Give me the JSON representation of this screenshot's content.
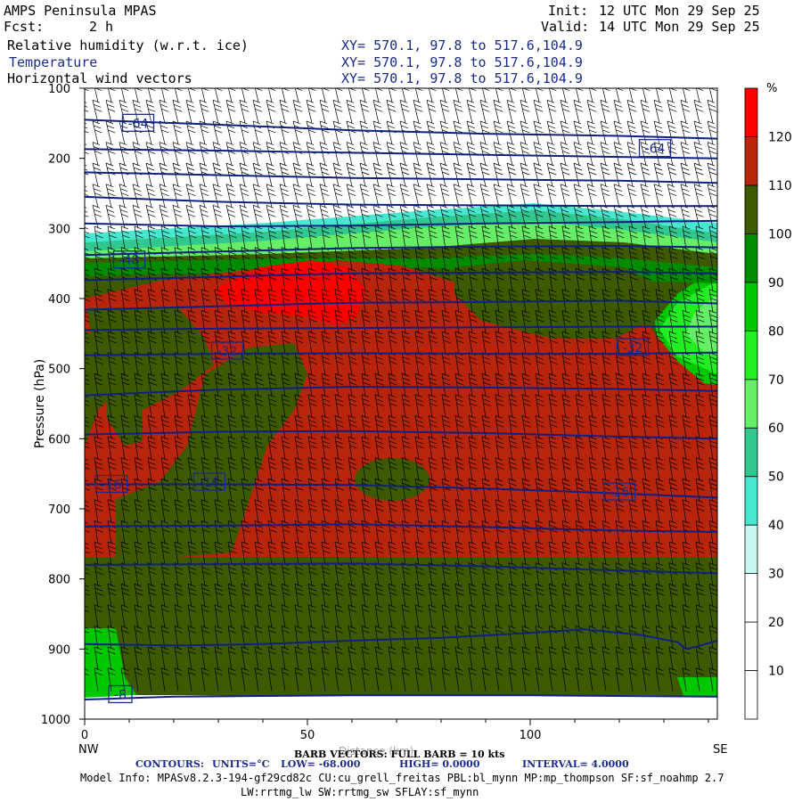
{
  "header": {
    "title": "AMPS Peninsula MPAS",
    "fcst_label": "Fcst:",
    "fcst_value": "2 h",
    "init_label": "Init:",
    "init_value": "12 UTC Mon 29 Sep 25",
    "valid_label": "Valid:",
    "valid_value": "14 UTC Mon 29 Sep 25",
    "fields": [
      {
        "name": "Relative humidity (w.r.t. ice)",
        "xy": "XY= 570.1, 97.8 to 517.6,104.9"
      },
      {
        "name": "Temperature",
        "xy": "XY= 570.1, 97.8 to 517.6,104.9"
      },
      {
        "name": "Horizontal wind vectors",
        "xy": "XY= 570.1, 97.8 to 517.6,104.9"
      }
    ]
  },
  "chart_data": {
    "type": "cross-section",
    "title": "AMPS Peninsula MPAS cross section",
    "ylabel": "Pressure (hPa)",
    "xlabel": "Distance (km)",
    "x_left_label": "NW",
    "x_right_label": "SE",
    "xlim": [
      0,
      142
    ],
    "ylim": [
      1000,
      100
    ],
    "x_ticks": [
      0,
      50,
      100
    ],
    "y_ticks": [
      100,
      200,
      300,
      400,
      500,
      600,
      700,
      800,
      900,
      1000
    ],
    "colorbar": {
      "unit": "%",
      "bins": [
        {
          "min": 0,
          "max": 10,
          "color": "#ffffff"
        },
        {
          "min": 10,
          "max": 20,
          "color": "#ffffff"
        },
        {
          "min": 20,
          "max": 30,
          "color": "#ffffff"
        },
        {
          "min": 30,
          "max": 40,
          "color": "#c8f7f0"
        },
        {
          "min": 40,
          "max": 50,
          "color": "#46e8d0"
        },
        {
          "min": 50,
          "max": 60,
          "color": "#30c88e"
        },
        {
          "min": 60,
          "max": 70,
          "color": "#66ee66"
        },
        {
          "min": 70,
          "max": 80,
          "color": "#22ee22"
        },
        {
          "min": 80,
          "max": 90,
          "color": "#00c800"
        },
        {
          "min": 90,
          "max": 100,
          "color": "#008c00"
        },
        {
          "min": 100,
          "max": 110,
          "color": "#3d5a00"
        },
        {
          "min": 110,
          "max": 120,
          "color": "#b8250c"
        },
        {
          "min": 120,
          "max": 130,
          "color": "#ff0000"
        }
      ],
      "tick_labels": [
        "10",
        "20",
        "30",
        "40",
        "50",
        "60",
        "70",
        "80",
        "90",
        "100",
        "110",
        "120"
      ]
    },
    "temperature_contours": [
      {
        "value": -64,
        "points": [
          [
            0,
            145
          ],
          [
            30,
            152
          ],
          [
            60,
            160
          ],
          [
            90,
            165
          ],
          [
            120,
            168
          ],
          [
            142,
            172
          ]
        ]
      },
      {
        "value": -60,
        "points": [
          [
            0,
            187
          ],
          [
            30,
            189
          ],
          [
            60,
            192
          ],
          [
            90,
            195
          ],
          [
            120,
            198
          ],
          [
            142,
            200
          ]
        ]
      },
      {
        "value": -56,
        "points": [
          [
            0,
            220
          ],
          [
            30,
            224
          ],
          [
            60,
            228
          ],
          [
            90,
            230
          ],
          [
            120,
            232
          ],
          [
            142,
            235
          ]
        ]
      },
      {
        "value": -52,
        "points": [
          [
            0,
            255
          ],
          [
            30,
            262
          ],
          [
            60,
            266
          ],
          [
            90,
            267
          ],
          [
            120,
            268
          ],
          [
            142,
            268
          ]
        ]
      },
      {
        "value": -48,
        "points": [
          [
            0,
            293
          ],
          [
            30,
            297
          ],
          [
            60,
            296
          ],
          [
            90,
            293
          ],
          [
            120,
            291
          ],
          [
            142,
            289
          ]
        ]
      },
      {
        "value": -44,
        "points": [
          [
            0,
            338
          ],
          [
            30,
            333
          ],
          [
            60,
            328
          ],
          [
            90,
            326
          ],
          [
            120,
            325
          ],
          [
            142,
            327
          ]
        ]
      },
      {
        "value": -40,
        "points": [
          [
            0,
            374
          ],
          [
            30,
            369
          ],
          [
            60,
            364
          ],
          [
            90,
            363
          ],
          [
            120,
            362
          ],
          [
            142,
            364
          ]
        ]
      },
      {
        "value": -36,
        "points": [
          [
            0,
            416
          ],
          [
            30,
            411
          ],
          [
            60,
            406
          ],
          [
            90,
            405
          ],
          [
            120,
            403
          ],
          [
            142,
            407
          ]
        ]
      },
      {
        "value": -32,
        "points": [
          [
            0,
            445
          ],
          [
            30,
            443
          ],
          [
            60,
            442
          ],
          [
            90,
            441
          ],
          [
            120,
            440
          ],
          [
            142,
            440
          ]
        ]
      },
      {
        "value": -28,
        "points": [
          [
            0,
            481
          ],
          [
            30,
            479
          ],
          [
            60,
            478
          ],
          [
            90,
            479
          ],
          [
            120,
            479
          ],
          [
            142,
            477
          ]
        ]
      },
      {
        "value": -24,
        "points": [
          [
            0,
            538
          ],
          [
            30,
            530
          ],
          [
            60,
            526
          ],
          [
            90,
            527
          ],
          [
            120,
            529
          ],
          [
            142,
            532
          ]
        ]
      },
      {
        "value": -20,
        "points": [
          [
            0,
            594
          ],
          [
            30,
            590
          ],
          [
            60,
            589
          ],
          [
            90,
            592
          ],
          [
            120,
            597
          ],
          [
            142,
            600
          ]
        ]
      },
      {
        "value": -16,
        "points": [
          [
            0,
            665
          ],
          [
            30,
            665
          ],
          [
            60,
            666
          ],
          [
            90,
            671
          ],
          [
            120,
            678
          ],
          [
            142,
            684
          ]
        ]
      },
      {
        "value": -12,
        "points": [
          [
            0,
            725
          ],
          [
            30,
            724
          ],
          [
            60,
            722
          ],
          [
            90,
            726
          ],
          [
            120,
            731
          ],
          [
            142,
            733
          ]
        ]
      },
      {
        "value": -8,
        "points": [
          [
            0,
            780
          ],
          [
            30,
            779
          ],
          [
            60,
            778
          ],
          [
            90,
            782
          ],
          [
            120,
            788
          ],
          [
            142,
            792
          ]
        ]
      },
      {
        "value": -4,
        "points": [
          [
            0,
            893
          ],
          [
            20,
            895
          ],
          [
            40,
            893
          ],
          [
            60,
            888
          ],
          [
            80,
            884
          ],
          [
            100,
            877
          ],
          [
            112,
            872
          ],
          [
            125,
            880
          ],
          [
            133,
            890
          ],
          [
            135,
            900
          ],
          [
            137,
            897
          ],
          [
            142,
            888
          ]
        ]
      },
      {
        "value": 0,
        "points": [
          [
            0,
            972
          ],
          [
            20,
            968
          ],
          [
            40,
            967
          ],
          [
            60,
            966
          ],
          [
            80,
            966
          ],
          [
            100,
            966
          ],
          [
            120,
            967
          ],
          [
            142,
            968
          ]
        ]
      }
    ],
    "contour_labels": [
      {
        "text": "-64",
        "x": 12,
        "p": 150
      },
      {
        "text": "-64",
        "x": 128,
        "p": 186
      },
      {
        "text": "-48",
        "x": 10,
        "p": 345
      },
      {
        "text": "-32",
        "x": 32,
        "p": 475
      },
      {
        "text": "-32",
        "x": 123,
        "p": 470
      },
      {
        "text": "-16",
        "x": 6,
        "p": 665
      },
      {
        "text": "-16",
        "x": 28,
        "p": 662
      },
      {
        "text": "-16",
        "x": 120,
        "p": 676
      },
      {
        "text": "-8",
        "x": 8,
        "p": 965
      }
    ],
    "barb_columns_km": [
      0,
      3,
      6,
      9,
      12,
      15,
      18,
      21,
      24,
      27,
      30,
      33,
      36,
      39,
      42,
      45,
      48,
      51,
      54,
      57,
      60,
      63,
      66,
      69,
      72,
      75,
      78,
      81,
      84,
      87,
      90,
      93,
      96,
      99,
      102,
      105,
      108,
      111,
      114,
      117,
      120,
      123,
      126,
      129,
      132,
      135,
      138,
      141
    ],
    "barb_levels_hpa": [
      120,
      150,
      180,
      210,
      240,
      270,
      300,
      330,
      360,
      390,
      420,
      450,
      480,
      510,
      540,
      570,
      600,
      630,
      660,
      690,
      720,
      750,
      780,
      810,
      840,
      870,
      900,
      930,
      960
    ]
  },
  "footer": {
    "barb_note": "BARB VECTORS: FULL BARB = 10 kts",
    "distance_label": "Distance (km)",
    "contours_label": "CONTOURS:",
    "units": "UNITS=°C",
    "low": "LOW= -68.000",
    "high": "HIGH= 0.0000",
    "interval": "INTERVAL= 4.0000",
    "model_info": "Model Info: MPASv8.2.3-194-gf29cd82c CU:cu_grell_freitas PBL:bl_mynn MP:mp_thompson SF:sf_noahmp 2.7",
    "model_info_2": "LW:rrtmg_lw SW:rrtmg_sw SFLAY:sf_mynn"
  },
  "colors": {
    "contour": "#101f80",
    "label_box": "#1a2b8a",
    "barb": "#000000",
    "frame": "#000000"
  }
}
